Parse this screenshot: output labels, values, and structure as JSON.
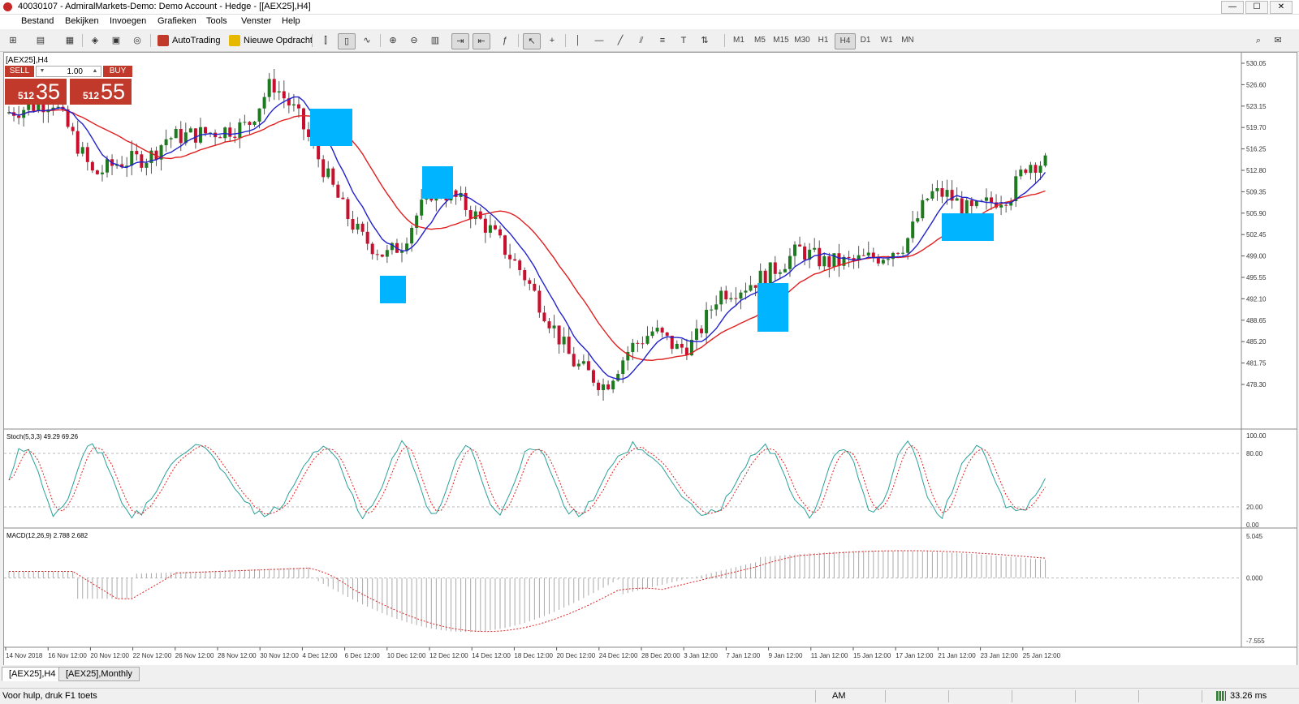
{
  "window": {
    "title": "40030107 - AdmiralMarkets-Demo: Demo Account - Hedge - [[AEX25],H4]",
    "buttons": [
      "—",
      "☐",
      "✕"
    ]
  },
  "menu": [
    "Bestand",
    "Bekijken",
    "Invoegen",
    "Grafieken",
    "Tools",
    "Venster",
    "Help"
  ],
  "toolbar": {
    "autotrading": "AutoTrading",
    "new_order": "Nieuwe Opdracht",
    "timeframes": [
      "M1",
      "M5",
      "M15",
      "M30",
      "H1",
      "H4",
      "D1",
      "W1",
      "MN"
    ],
    "active_timeframe": "H4"
  },
  "chart": {
    "symbol_label": "[AEX25],H4",
    "trade_panel": {
      "sell_label": "SELL",
      "buy_label": "BUY",
      "lot": "1.00",
      "sell_small": "512",
      "sell_big": "35",
      "buy_small": "512",
      "buy_big": "55"
    },
    "price_axis": [
      "530.05",
      "526.60",
      "523.15",
      "519.70",
      "516.25",
      "512.80",
      "509.35",
      "505.90",
      "502.45",
      "499.00",
      "495.55",
      "492.10",
      "488.65",
      "485.20",
      "481.75",
      "478.30"
    ],
    "stoch_label": "Stoch(5,3,3) 49.29 69.26",
    "stoch_axis": [
      "100.00",
      "80.00",
      "20.00",
      "0.00"
    ],
    "macd_label": "MACD(12,26,9) 2.788 2.682",
    "macd_axis": [
      "5.045",
      "0.000",
      "-7.555"
    ],
    "time_axis": [
      "14 Nov 2018",
      "16 Nov 12:00",
      "20 Nov 12:00",
      "22 Nov 12:00",
      "26 Nov 12:00",
      "28 Nov 12:00",
      "30 Nov 12:00",
      "4 Dec 12:00",
      "6 Dec 12:00",
      "10 Dec 12:00",
      "12 Dec 12:00",
      "14 Dec 12:00",
      "18 Dec 12:00",
      "20 Dec 12:00",
      "24 Dec 12:00",
      "28 Dec 20:00",
      "3 Jan 12:00",
      "7 Jan 12:00",
      "9 Jan 12:00",
      "11 Jan 12:00",
      "15 Jan 12:00",
      "17 Jan 12:00",
      "21 Jan 12:00",
      "23 Jan 12:00",
      "25 Jan 12:00"
    ],
    "colors": {
      "bull": "#1e7a1e",
      "bear": "#c8102e",
      "ma_fast": "#2222cc",
      "ma_slow": "#e02020",
      "highlight": "#00b4ff",
      "stoch_main": "#2aa198",
      "stoch_signal": "#e02020"
    }
  },
  "tabs": [
    "[AEX25],H4",
    "[AEX25],Monthly"
  ],
  "status": {
    "help": "Voor hulp, druk F1 toets",
    "profile": "AM",
    "ping": "33.26 ms"
  }
}
